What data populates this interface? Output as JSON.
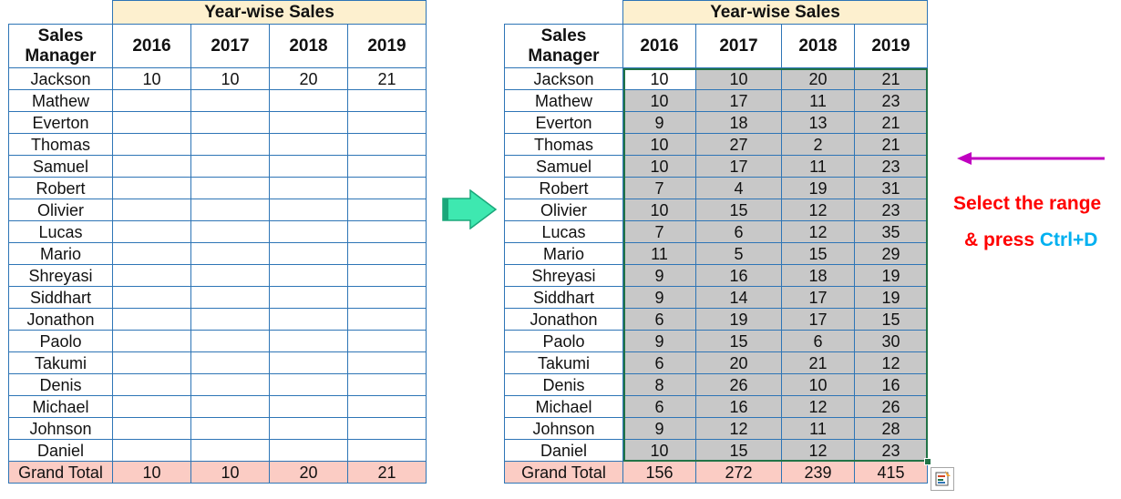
{
  "title": "Year-wise Sales",
  "header": {
    "manager_line1": "Sales",
    "manager_line2": "Manager",
    "years": [
      "2016",
      "2017",
      "2018",
      "2019"
    ]
  },
  "managers": [
    "Jackson",
    "Mathew",
    "Everton",
    "Thomas",
    "Samuel",
    "Robert",
    "Olivier",
    "Lucas",
    "Mario",
    "Shreyasi",
    "Siddhart",
    "Jonathon",
    "Paolo",
    "Takumi",
    "Denis",
    "Michael",
    "Johnson",
    "Daniel"
  ],
  "left_first_row": [
    "10",
    "10",
    "20",
    "21"
  ],
  "right_values": [
    [
      "10",
      "10",
      "20",
      "21"
    ],
    [
      "10",
      "17",
      "11",
      "23"
    ],
    [
      "9",
      "18",
      "13",
      "21"
    ],
    [
      "10",
      "27",
      "2",
      "21"
    ],
    [
      "10",
      "17",
      "11",
      "23"
    ],
    [
      "7",
      "4",
      "19",
      "31"
    ],
    [
      "10",
      "15",
      "12",
      "23"
    ],
    [
      "7",
      "6",
      "12",
      "35"
    ],
    [
      "11",
      "5",
      "15",
      "29"
    ],
    [
      "9",
      "16",
      "18",
      "19"
    ],
    [
      "9",
      "14",
      "17",
      "19"
    ],
    [
      "6",
      "19",
      "17",
      "15"
    ],
    [
      "9",
      "15",
      "6",
      "30"
    ],
    [
      "6",
      "20",
      "21",
      "12"
    ],
    [
      "8",
      "26",
      "10",
      "16"
    ],
    [
      "6",
      "16",
      "12",
      "26"
    ],
    [
      "9",
      "12",
      "11",
      "28"
    ],
    [
      "10",
      "15",
      "12",
      "23"
    ]
  ],
  "grand_total_label": "Grand Total",
  "left_totals": [
    "10",
    "10",
    "20",
    "21"
  ],
  "right_totals": [
    "156",
    "272",
    "239",
    "415"
  ],
  "instruction": {
    "line1": "Select the range",
    "line2_prefix": "& press ",
    "shortcut": "Ctrl+D"
  },
  "colors": {
    "border": "#2e75b6",
    "title_bg": "#fdf0cf",
    "total_bg": "#fbccc4",
    "selection_bg": "#c8c8c8",
    "selection_border": "#217346",
    "arrow_right": "#3ee8b0",
    "arrow_left": "#c000c0",
    "note_red": "#ff0000",
    "note_blue": "#00b0f0"
  },
  "icons": {
    "transform_arrow": "arrow-right-icon",
    "pointer_arrow": "arrow-left-icon",
    "quick_analysis": "quick-analysis-icon"
  }
}
